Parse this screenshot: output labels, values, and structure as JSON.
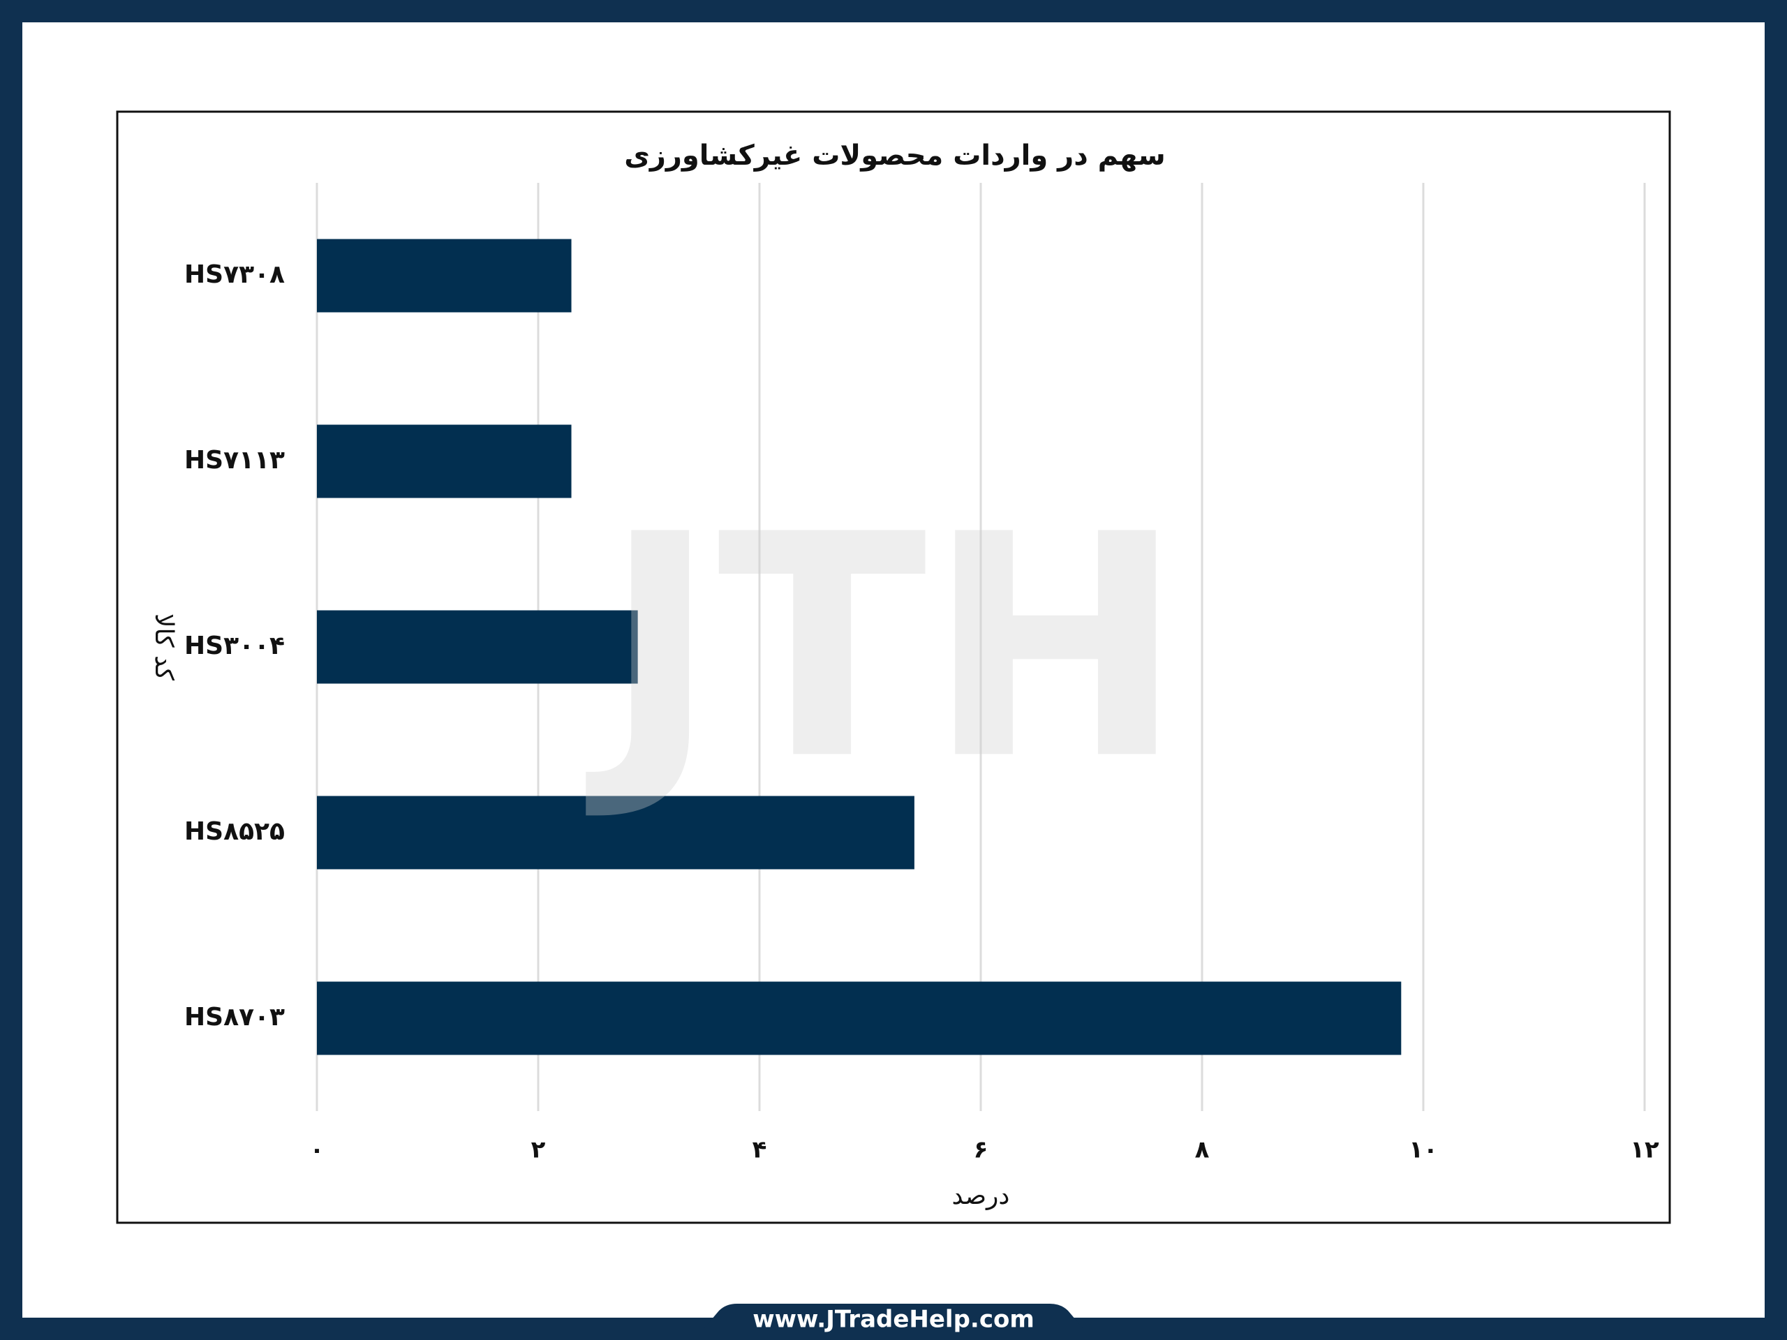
{
  "chart_data": {
    "type": "bar",
    "orientation": "horizontal",
    "title": "سهم در واردات محصولات غیرکشاورزی",
    "xlabel": "درصد",
    "ylabel": "کد کالا",
    "categories": [
      "HS۷۳۰۸",
      "HS۷۱۱۳",
      "HS۳۰۰۴",
      "HS۸۵۲۵",
      "HS۸۷۰۳"
    ],
    "values": [
      2.3,
      2.3,
      2.9,
      5.4,
      9.8
    ],
    "color": "#022f50",
    "xlim": [
      0,
      12
    ],
    "xticks": [
      {
        "value": 0,
        "label": "۰"
      },
      {
        "value": 2,
        "label": "۲"
      },
      {
        "value": 4,
        "label": "۴"
      },
      {
        "value": 6,
        "label": "۶"
      },
      {
        "value": 8,
        "label": "۸"
      },
      {
        "value": 10,
        "label": "۱۰"
      },
      {
        "value": 12,
        "label": "۱۲"
      }
    ],
    "grid": true,
    "watermark": "JTH"
  },
  "footer": "www.JTradeHelp.com"
}
